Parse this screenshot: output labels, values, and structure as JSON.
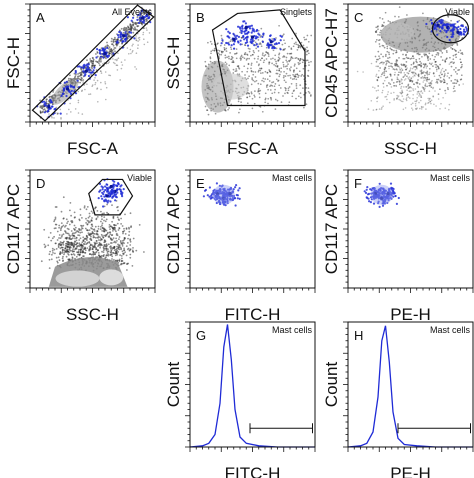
{
  "figure": {
    "panels": [
      {
        "id": "A",
        "letter": "A",
        "type": "scatter",
        "xlabel": "FSC-A",
        "ylabel": "FSC-H",
        "gate_label": "All Events",
        "gate_shape": "band",
        "density": "diagonal",
        "highlight_color": "#1f2bd6"
      },
      {
        "id": "B",
        "letter": "B",
        "type": "scatter",
        "xlabel": "FSC-A",
        "ylabel": "SSC-H",
        "gate_label": "Singlets",
        "gate_shape": "polygon",
        "density": "smear",
        "highlight_color": "#1f2bd6"
      },
      {
        "id": "C",
        "letter": "C",
        "type": "scatter",
        "xlabel": "SSC-H",
        "ylabel": "CD45 APC-H7",
        "gate_label": "Viable",
        "gate_shape": "ellipse",
        "density": "top-right",
        "highlight_color": "#1f2bd6"
      },
      {
        "id": "D",
        "letter": "D",
        "type": "scatter",
        "xlabel": "SSC-H",
        "ylabel": "CD117 APC",
        "gate_label": "Viable",
        "gate_shape": "hexagon",
        "density": "bottom-blob",
        "highlight_color": "#1f2bd6"
      },
      {
        "id": "E",
        "letter": "E",
        "type": "scatter",
        "xlabel": "FITC-H",
        "ylabel": "CD117 APC",
        "gate_label": "Mast cells",
        "gate_shape": "none",
        "density": "cluster",
        "highlight_color": "#2a35d8"
      },
      {
        "id": "F",
        "letter": "F",
        "type": "scatter",
        "xlabel": "PE-H",
        "ylabel": "CD117 APC",
        "gate_label": "Mast cells",
        "gate_shape": "none",
        "density": "cluster",
        "highlight_color": "#2a35d8"
      },
      {
        "id": "G",
        "letter": "G",
        "type": "histogram",
        "xlabel": "FITC-H",
        "ylabel": "Count",
        "gate_label": "Mast cells",
        "gate_shape": "range",
        "density": "peak",
        "highlight_color": "#1f2bd6"
      },
      {
        "id": "H",
        "letter": "H",
        "type": "histogram",
        "xlabel": "PE-H",
        "ylabel": "Count",
        "gate_label": "Mast cells",
        "gate_shape": "range",
        "density": "peak",
        "highlight_color": "#1f2bd6"
      }
    ]
  },
  "chart_data": [
    {
      "type": "scatter",
      "panel": "A",
      "title": "All Events",
      "xlabel": "FSC-A",
      "ylabel": "FSC-H",
      "xlim": [
        0,
        1
      ],
      "ylim": [
        0,
        1
      ],
      "grid": false,
      "axis_tick_labels": "none",
      "series": [
        {
          "values": [
            {
              "x": 0.15,
              "y": 0.13
            },
            {
              "x": 0.3,
              "y": 0.28
            },
            {
              "x": 0.45,
              "y": 0.43
            },
            {
              "x": 0.6,
              "y": 0.58
            },
            {
              "x": 0.75,
              "y": 0.73
            },
            {
              "x": 0.9,
              "y": 0.88
            }
          ]
        }
      ]
    },
    {
      "type": "scatter",
      "panel": "B",
      "title": "Singlets",
      "xlabel": "FSC-A",
      "ylabel": "SSC-H",
      "xlim": [
        0,
        1
      ],
      "ylim": [
        0,
        1
      ],
      "grid": false,
      "axis_tick_labels": "none",
      "series": [
        {
          "values": [
            {
              "x": 0.35,
              "y": 0.7
            },
            {
              "x": 0.5,
              "y": 0.72
            },
            {
              "x": 0.65,
              "y": 0.68
            },
            {
              "x": 0.45,
              "y": 0.8
            }
          ]
        }
      ]
    },
    {
      "type": "scatter",
      "panel": "C",
      "title": "Viable",
      "xlabel": "SSC-H",
      "ylabel": "CD45 APC-H7",
      "xlim": [
        0,
        1
      ],
      "ylim": [
        0,
        1
      ],
      "grid": false,
      "axis_tick_labels": "none",
      "series": [
        {
          "values": [
            {
              "x": 0.72,
              "y": 0.82
            },
            {
              "x": 0.8,
              "y": 0.8
            },
            {
              "x": 0.88,
              "y": 0.76
            }
          ]
        }
      ]
    },
    {
      "type": "scatter",
      "panel": "D",
      "title": "Viable",
      "xlabel": "SSC-H",
      "ylabel": "CD117 APC",
      "xlim": [
        0,
        1
      ],
      "ylim": [
        0,
        1
      ],
      "grid": false,
      "axis_tick_labels": "none",
      "series": [
        {
          "values": [
            {
              "x": 0.62,
              "y": 0.78
            },
            {
              "x": 0.68,
              "y": 0.82
            },
            {
              "x": 0.65,
              "y": 0.86
            }
          ]
        }
      ]
    },
    {
      "type": "scatter",
      "panel": "E",
      "title": "Mast cells",
      "xlabel": "FITC-H",
      "ylabel": "CD117 APC",
      "xlim": [
        0,
        1
      ],
      "ylim": [
        0,
        1
      ],
      "grid": false,
      "axis_tick_labels": "none",
      "series": [
        {
          "values": [
            {
              "x": 0.22,
              "y": 0.8
            },
            {
              "x": 0.27,
              "y": 0.76
            },
            {
              "x": 0.32,
              "y": 0.8
            }
          ]
        }
      ]
    },
    {
      "type": "scatter",
      "panel": "F",
      "title": "Mast cells",
      "xlabel": "PE-H",
      "ylabel": "CD117 APC",
      "xlim": [
        0,
        1
      ],
      "ylim": [
        0,
        1
      ],
      "grid": false,
      "axis_tick_labels": "none",
      "series": [
        {
          "values": [
            {
              "x": 0.22,
              "y": 0.8
            },
            {
              "x": 0.27,
              "y": 0.76
            },
            {
              "x": 0.32,
              "y": 0.8
            }
          ]
        }
      ]
    },
    {
      "type": "line",
      "panel": "G",
      "title": "Mast cells",
      "xlabel": "FITC-H",
      "ylabel": "Count",
      "xlim": [
        0,
        1
      ],
      "ylim": [
        0,
        1
      ],
      "grid": false,
      "axis_tick_labels": "none",
      "x": [
        0.0,
        0.1,
        0.15,
        0.2,
        0.24,
        0.27,
        0.3,
        0.33,
        0.36,
        0.4,
        0.45,
        0.55,
        0.7,
        1.0
      ],
      "series": [
        {
          "values": [
            0.0,
            0.01,
            0.03,
            0.1,
            0.35,
            0.8,
            0.98,
            0.7,
            0.3,
            0.08,
            0.03,
            0.01,
            0.0,
            0.0
          ]
        }
      ],
      "marker_range": [
        0.48,
        0.98
      ]
    },
    {
      "type": "line",
      "panel": "H",
      "title": "Mast cells",
      "xlabel": "PE-H",
      "ylabel": "Count",
      "xlim": [
        0,
        1
      ],
      "ylim": [
        0,
        1
      ],
      "grid": false,
      "axis_tick_labels": "none",
      "x": [
        0.0,
        0.1,
        0.15,
        0.2,
        0.24,
        0.27,
        0.3,
        0.33,
        0.36,
        0.4,
        0.45,
        0.55,
        0.7,
        1.0
      ],
      "series": [
        {
          "values": [
            0.0,
            0.01,
            0.03,
            0.12,
            0.4,
            0.85,
            0.97,
            0.68,
            0.28,
            0.07,
            0.02,
            0.01,
            0.0,
            0.0
          ]
        }
      ],
      "marker_range": [
        0.4,
        0.98
      ]
    }
  ]
}
